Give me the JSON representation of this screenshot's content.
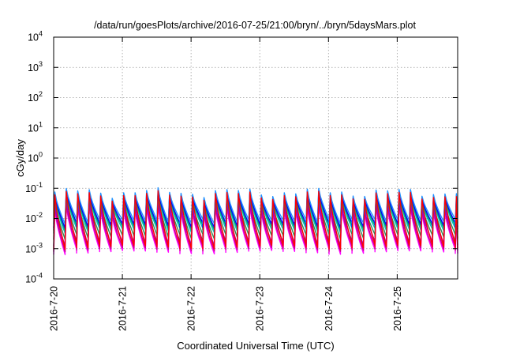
{
  "chart_data": {
    "type": "line",
    "title": "/data/run/goesPlots/archive/2016-07-25/21:00/bryn/../bryn/5daysMars.plot",
    "xlabel": "Coordinated Universal Time (UTC)",
    "ylabel": "cGy/day",
    "yscale": "log",
    "ylim": [
      0.0001,
      10000
    ],
    "y_ticks": [
      {
        "value": 0.0001,
        "base": "10",
        "exp": "-4"
      },
      {
        "value": 0.001,
        "base": "10",
        "exp": "-3"
      },
      {
        "value": 0.01,
        "base": "10",
        "exp": "-2"
      },
      {
        "value": 0.1,
        "base": "10",
        "exp": "-1"
      },
      {
        "value": 1,
        "base": "10",
        "exp": "0"
      },
      {
        "value": 10,
        "base": "10",
        "exp": "1"
      },
      {
        "value": 100,
        "base": "10",
        "exp": "2"
      },
      {
        "value": 1000,
        "base": "10",
        "exp": "3"
      },
      {
        "value": 10000,
        "base": "10",
        "exp": "4"
      }
    ],
    "x_ticks": [
      "2016-7-20",
      "2016-7-21",
      "2016-7-22",
      "2016-7-23",
      "2016-7-24",
      "2016-7-25"
    ],
    "xlim_days": [
      0,
      5.88
    ],
    "grid": true,
    "legend": "none",
    "period_days": 0.167,
    "series": [
      {
        "color": "#ff00ff",
        "peak": 0.02,
        "trough": 0.0008
      },
      {
        "color": "#cc0088",
        "peak": 0.025,
        "trough": 0.001
      },
      {
        "color": "#9400d3",
        "peak": 0.03,
        "trough": 0.0015
      },
      {
        "color": "#2e8b57",
        "peak": 0.04,
        "trough": 0.0025
      },
      {
        "color": "#00c0c0",
        "peak": 0.05,
        "trough": 0.004
      },
      {
        "color": "#00aa66",
        "peak": 0.055,
        "trough": 0.005
      },
      {
        "color": "#0000ff",
        "peak": 0.065,
        "trough": 0.006
      },
      {
        "color": "#1e90ff",
        "peak": 0.075,
        "trough": 0.008
      },
      {
        "color": "#ff0000",
        "peak": 0.06,
        "trough": 0.0012
      }
    ]
  }
}
